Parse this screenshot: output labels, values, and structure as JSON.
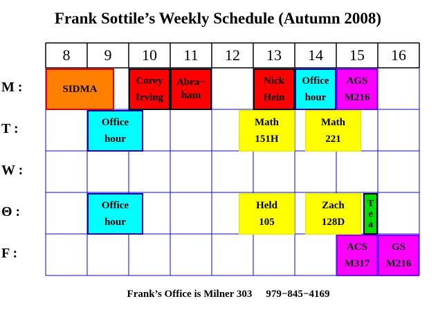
{
  "title": "Frank Sottile’s Weekly Schedule (Autumn 2008)",
  "hours": [
    "8",
    "9",
    "10",
    "11",
    "12",
    "13",
    "14",
    "15",
    "16"
  ],
  "days": [
    "M :",
    "T :",
    "W :",
    "Θ :",
    "F :"
  ],
  "events": [
    {
      "label": "SIDMA",
      "day": "M :",
      "start": 8,
      "end": 9.65,
      "color": "#ff8000"
    },
    {
      "label": "Corey\nIrving",
      "day": "M :",
      "start": 10,
      "end": 11,
      "color": "#ff0000"
    },
    {
      "label": "Abra−\nham",
      "day": "M :",
      "start": 11,
      "end": 12,
      "color": "#ff0000"
    },
    {
      "label": "Nick\nHein",
      "day": "M :",
      "start": 13,
      "end": 14,
      "color": "#ff0000"
    },
    {
      "label": "Office\nhour",
      "day": "M :",
      "start": 14,
      "end": 15,
      "color": "#00ffff"
    },
    {
      "label": "AGS\nM216",
      "day": "M :",
      "start": 15,
      "end": 16,
      "color": "#ff00ff"
    },
    {
      "label": "Office\nhour",
      "day": "T :",
      "start": 9,
      "end": 10.35,
      "color": "#00ffff"
    },
    {
      "label": "Math\n151H",
      "day": "T :",
      "start": 12.65,
      "end": 14,
      "color": "#ffff00"
    },
    {
      "label": "Math\n221",
      "day": "T :",
      "start": 14.25,
      "end": 15.6,
      "color": "#ffff00"
    },
    {
      "label": "Office\nhour",
      "day": "Θ :",
      "start": 9,
      "end": 10.35,
      "color": "#00ffff"
    },
    {
      "label": "Held\n105",
      "day": "Θ :",
      "start": 12.65,
      "end": 14,
      "color": "#ffff00"
    },
    {
      "label": "Zach\n128D",
      "day": "Θ :",
      "start": 14.25,
      "end": 15.6,
      "color": "#ffff00"
    },
    {
      "label": "T\ne\na",
      "day": "Θ :",
      "start": 15.65,
      "end": 16,
      "color": "#00dd00"
    },
    {
      "label": "ACS\nM317",
      "day": "F :",
      "start": 15,
      "end": 16,
      "color": "#ff00ff"
    },
    {
      "label": "GS\nM216",
      "day": "F :",
      "start": 16,
      "end": 17,
      "color": "#ff00ff"
    }
  ],
  "footer": {
    "office": "Frank’s Office is Milner 303",
    "phone": "979−845−4169"
  }
}
